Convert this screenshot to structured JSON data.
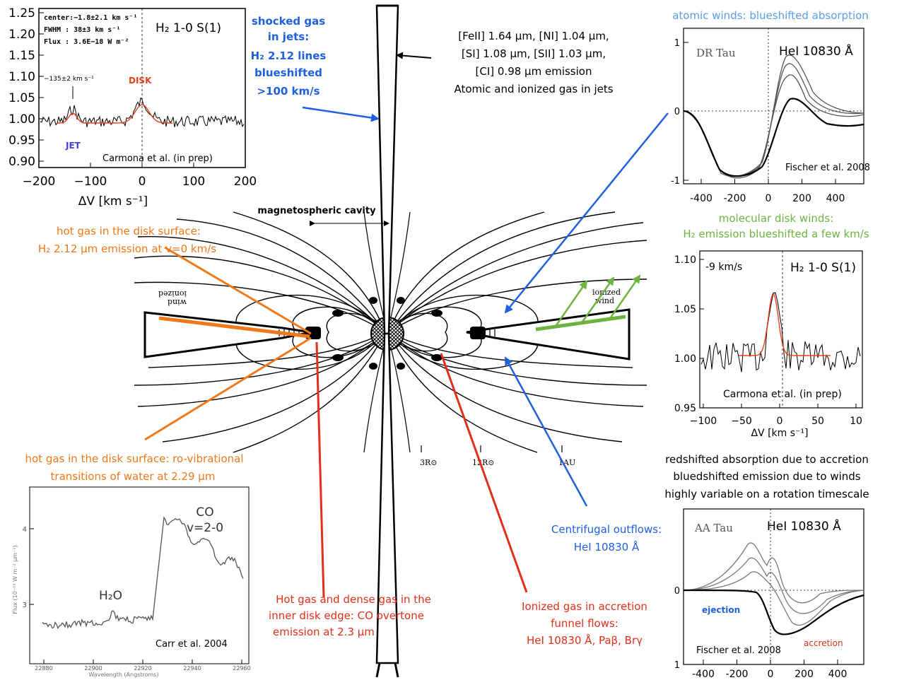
{
  "colors": {
    "blue": "#1f5fe0",
    "orange": "#f07818",
    "red": "#e0301a",
    "green": "#6cb33f",
    "spectrum_fit": "#e8401c"
  },
  "annotations": {
    "shocked_gas": [
      "shocked gas",
      "in jets:",
      "H₂ 2.12 lines",
      "blueshifted",
      ">100 km/s"
    ],
    "atomic_jets": [
      "[FeII] 1.64 μm, [NI] 1.04 μm,",
      "[SI] 1.08 μm, [SII] 1.03 μm,",
      "[CI] 0.98 μm emission",
      "Atomic and ionized gas in jets"
    ],
    "atomic_winds_title": "atomic winds: blueshifted absorption",
    "molecular_winds": [
      "molecular disk winds:",
      "H₂ emission blueshifted a few km/s"
    ],
    "magnetospheric_cavity": "magnetospheric cavity",
    "hot_gas_h2": [
      "hot gas in the disk surface:",
      "H₂ 2.12 μm emission at v=0 km/s"
    ],
    "hot_gas_water": [
      "hot gas in the disk surface:  ro-vibrational",
      "transitions of  water at 2.29 μm"
    ],
    "co_overtone": [
      "Hot gas and dense gas in the",
      "inner disk edge: CO overtone",
      "emission at 2.3 μm"
    ],
    "funnel_flows": [
      "Ionized gas in accretion",
      "funnel flows:",
      "HeI 10830 Å, Paβ, Brγ"
    ],
    "centrifugal": [
      "Centrifugal outflows:",
      "HeI 10830 Å"
    ],
    "accretion_note": [
      "redshifted absorption due to accretion",
      "bluedshifted emission due to winds",
      "highly variable on a rotation timescale"
    ]
  },
  "diagram": {
    "scale_marks": [
      "3R⊙",
      "12R⊙",
      "1AU"
    ],
    "ionized_wind_left": [
      "ionized",
      "wind"
    ],
    "ionized_wind_right": [
      "ionized",
      "wind"
    ]
  },
  "panel_h2_jet": {
    "info": [
      "center:−1.8±2.1 km s⁻¹",
      "FWHM :  38±3 km s⁻¹",
      "Flux  : 3.6E−18 W m⁻²"
    ],
    "title": "H₂ 1-0 S(1)",
    "velocity_label": "−135±2 km s⁻¹",
    "disk_label": "DISK",
    "jet_label": "JET",
    "credit": "Carmona et al.  (in prep)",
    "yticks": [
      "1.25",
      "1.20",
      "1.15",
      "1.10",
      "1.05",
      "1.00",
      "0.95",
      "0.90"
    ],
    "xticks": [
      "−200",
      "−100",
      "0",
      "100",
      "200"
    ],
    "xlabel": "ΔV [km s⁻¹]"
  },
  "panel_dr_tau": {
    "star": "DR Tau",
    "line": "HeI 10830 Å",
    "credit": "Fischer et al. 2008",
    "yticks": [
      "1",
      "0",
      "-1"
    ],
    "xticks": [
      "-400",
      "-200",
      "0",
      "200",
      "400"
    ]
  },
  "panel_h2_disk": {
    "velocity": "-9 km/s",
    "title": "H₂ 1-0 S(1)",
    "credit": "Carmona et al.  (in prep)",
    "yticks": [
      "1.10",
      "1.05",
      "1.00",
      "0.95"
    ],
    "xticks": [
      "−100",
      "−50",
      "0",
      "50",
      "10"
    ],
    "xlabel": "ΔV [km s⁻¹]"
  },
  "panel_aa_tau": {
    "star": "AA Tau",
    "line": "HeI 10830 Å",
    "ejection": "ejection",
    "accretion": "accretion",
    "credit": "Fischer et al. 2008",
    "yticks": [
      "0",
      "1"
    ],
    "xticks": [
      "-400",
      "-200",
      "0",
      "200",
      "400"
    ]
  },
  "panel_co": {
    "co_label": [
      "CO",
      "v=2-0"
    ],
    "h2o_label": "H₂O",
    "credit": "Carr et al. 2004",
    "yticks": [
      "4",
      "3"
    ],
    "ylabel": "Flux (10⁻¹⁹ W m⁻² μm⁻¹)",
    "xticks": [
      "22880",
      "22900",
      "22920",
      "22940",
      "22960"
    ],
    "xlabel": "Wavelength (Angstroms)"
  }
}
